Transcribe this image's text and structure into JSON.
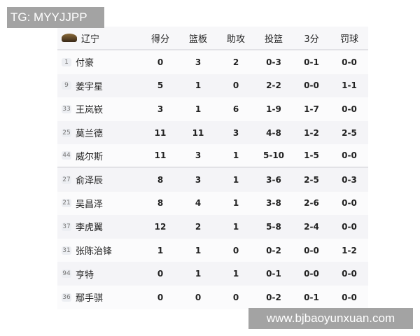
{
  "watermarks": {
    "top": "TG: MYYJJPP",
    "bottom": "www.bjbaoyunxuan.com"
  },
  "team": "辽宁",
  "columns": [
    "得分",
    "篮板",
    "助攻",
    "投篮",
    "3分",
    "罚球"
  ],
  "players": [
    {
      "num": "1",
      "name": "付豪",
      "stats": [
        "0",
        "3",
        "2",
        "0-3",
        "0-1",
        "0-0"
      ]
    },
    {
      "num": "9",
      "name": "姜宇星",
      "stats": [
        "5",
        "1",
        "0",
        "2-2",
        "0-0",
        "1-1"
      ]
    },
    {
      "num": "33",
      "name": "王岚嵚",
      "stats": [
        "3",
        "1",
        "6",
        "1-9",
        "1-7",
        "0-0"
      ]
    },
    {
      "num": "25",
      "name": "莫兰德",
      "stats": [
        "11",
        "11",
        "3",
        "4-8",
        "1-2",
        "2-5"
      ]
    },
    {
      "num": "44",
      "name": "威尔斯",
      "stats": [
        "11",
        "3",
        "1",
        "5-10",
        "1-5",
        "0-0"
      ]
    },
    {
      "num": "27",
      "name": "俞泽辰",
      "stats": [
        "8",
        "3",
        "1",
        "3-6",
        "2-5",
        "0-3"
      ]
    },
    {
      "num": "21",
      "name": "吴昌泽",
      "stats": [
        "8",
        "4",
        "1",
        "3-8",
        "2-6",
        "0-0"
      ]
    },
    {
      "num": "37",
      "name": "李虎翼",
      "stats": [
        "12",
        "2",
        "1",
        "5-8",
        "2-4",
        "0-0"
      ]
    },
    {
      "num": "31",
      "name": "张陈治锋",
      "stats": [
        "1",
        "1",
        "0",
        "0-2",
        "0-0",
        "1-2"
      ]
    },
    {
      "num": "94",
      "name": "亨特",
      "stats": [
        "0",
        "1",
        "1",
        "0-1",
        "0-0",
        "0-0"
      ]
    },
    {
      "num": "36",
      "name": "鄢手骐",
      "stats": [
        "0",
        "0",
        "0",
        "0-2",
        "0-1",
        "0-0"
      ]
    }
  ]
}
